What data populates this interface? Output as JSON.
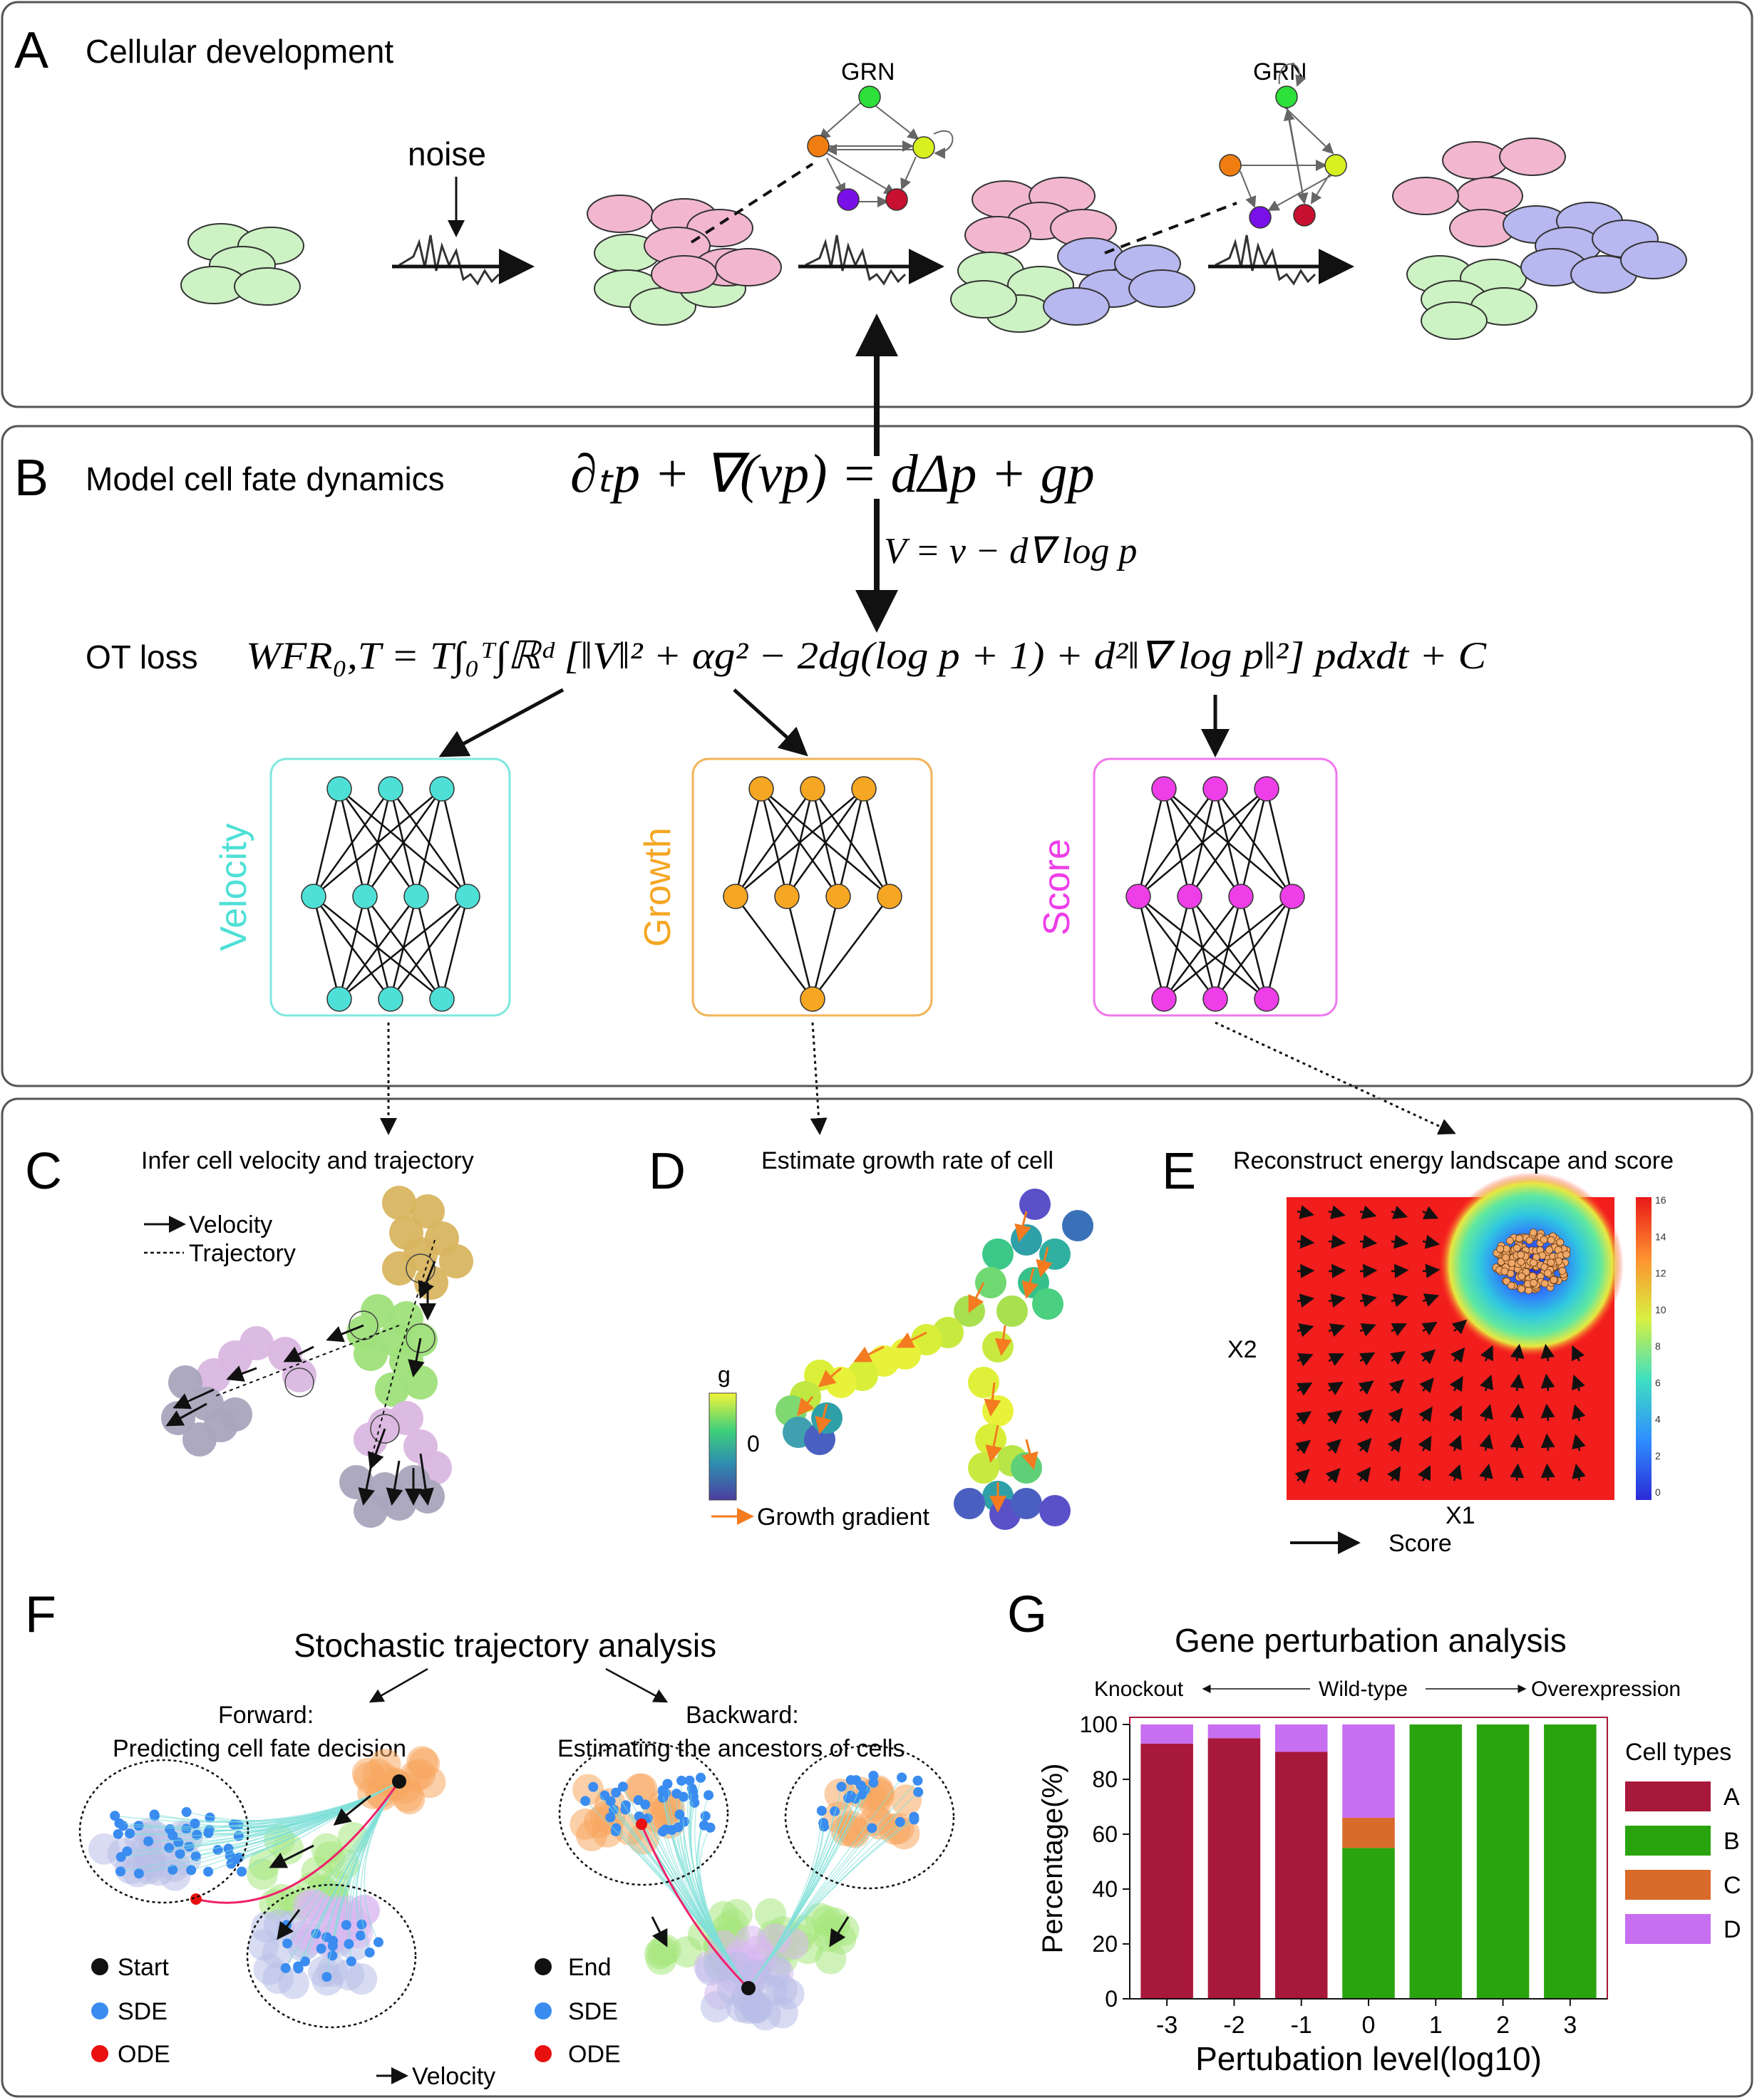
{
  "panel_a": {
    "letter": "A",
    "title": "Cellular development",
    "noise_label": "noise",
    "grn_label_1": "GRN",
    "grn_label_2": "GRN"
  },
  "panel_b": {
    "letter": "B",
    "title": "Model cell fate dynamics",
    "equation": "∂ₜp + ∇(vp) = dΔp + gp",
    "v_equation": "V = v − d∇ log p",
    "ot_label": "OT loss",
    "wfr_equation": "WFR₀,T = T∫₀ᵀ∫ℝᵈ [‖V‖² + αg² − 2dg(log p + 1) + d²‖∇ log p‖²] pdxdt + C",
    "networks": [
      "Velocity",
      "Growth",
      "Score"
    ],
    "colors": {
      "velocity": "#4ee0d6",
      "growth": "#f5a623",
      "score": "#ee3ee8",
      "box_velocity": "#7fe8e0",
      "box_growth": "#f2b45a",
      "box_score": "#ef79ec"
    }
  },
  "panel_c": {
    "letter": "C",
    "title": "Infer cell velocity and trajectory",
    "legend_velocity": "Velocity",
    "legend_trajectory": "Trajectory"
  },
  "panel_d": {
    "letter": "D",
    "title": "Estimate growth rate of cell",
    "colorbar_label": "g",
    "colorbar_tick": "0",
    "legend": "Growth gradient"
  },
  "panel_e": {
    "letter": "E",
    "title": "Reconstruct energy landscape and score",
    "xlabel": "X1",
    "ylabel": "X2",
    "legend": "Score",
    "colorbar_ticks": [
      "16",
      "14",
      "12",
      "10",
      "8",
      "6",
      "4",
      "2",
      "0"
    ]
  },
  "panel_f": {
    "letter": "F",
    "title": "Stochastic trajectory analysis",
    "forward_title": "Forward:",
    "forward_sub": "Predicting cell fate decision",
    "backward_title": "Backward:",
    "backward_sub": "Estimating the ancestors of cells",
    "legend_left": [
      "Start",
      "SDE",
      "ODE"
    ],
    "legend_right": [
      "End",
      "SDE",
      "ODE"
    ],
    "velocity_label": "Velocity"
  },
  "panel_g": {
    "letter": "G",
    "title": "Gene perturbation analysis",
    "knockout": "Knockout",
    "wildtype": "Wild-type",
    "overexpression": "Overexpression",
    "legend_title": "Cell types",
    "chart_data": {
      "type": "bar",
      "stacked": true,
      "categories": [
        "-3",
        "-2",
        "-1",
        "0",
        "1",
        "2",
        "3"
      ],
      "series": [
        {
          "name": "A",
          "color": "#a8183a",
          "values": [
            93,
            95,
            90,
            0,
            0,
            0,
            0
          ]
        },
        {
          "name": "B",
          "color": "#2aa40e",
          "values": [
            0,
            0,
            0,
            55,
            100,
            100,
            100
          ]
        },
        {
          "name": "C",
          "color": "#d86a2a",
          "values": [
            0,
            0,
            0,
            11,
            0,
            0,
            0
          ]
        },
        {
          "name": "D",
          "color": "#c86ef0",
          "values": [
            7,
            5,
            10,
            34,
            0,
            0,
            0
          ]
        }
      ],
      "xlabel": "Pertubation level(log10)",
      "ylabel": "Percentage(%)",
      "ylim": [
        0,
        100
      ],
      "yticks": [
        "0",
        "20",
        "40",
        "60",
        "80",
        "100"
      ]
    }
  }
}
